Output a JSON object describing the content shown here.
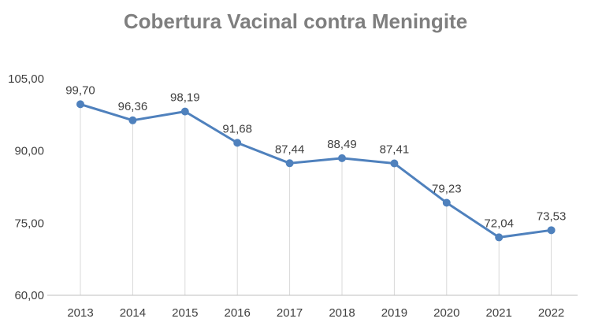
{
  "chart_data": {
    "type": "line",
    "title": "Cobertura Vacinal contra Meningite",
    "xlabel": "",
    "ylabel": "",
    "categories": [
      "2013",
      "2014",
      "2015",
      "2016",
      "2017",
      "2018",
      "2019",
      "2020",
      "2021",
      "2022"
    ],
    "series": [
      {
        "values": [
          99.7,
          96.36,
          98.19,
          91.68,
          87.44,
          88.49,
          87.41,
          79.23,
          72.04,
          73.53
        ],
        "labels": [
          "99,70",
          "96,36",
          "98,19",
          "91,68",
          "87,44",
          "88,49",
          "87,41",
          "79,23",
          "72,04",
          "73,53"
        ],
        "color": "#4f81bd"
      }
    ],
    "ylim": [
      60,
      105
    ],
    "yticks": [
      60,
      75,
      90,
      105
    ],
    "ytick_labels": [
      "60,00",
      "75,00",
      "90,00",
      "105,00"
    ],
    "grid": "vertical",
    "legend": "none",
    "grid_color": "#d9d9d9",
    "axis_color": "#bfbfbf"
  }
}
